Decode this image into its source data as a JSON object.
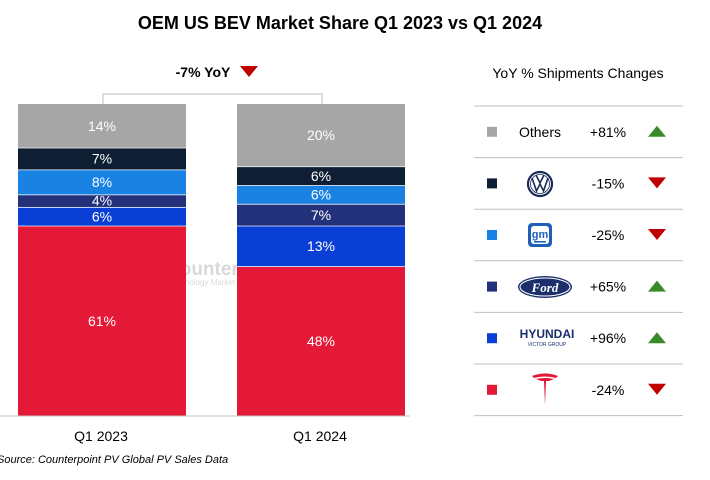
{
  "chart_data": {
    "type": "bar",
    "stacked": true,
    "title": "OEM US BEV Market Share Q1 2023 vs Q1 2024",
    "categories": [
      "Q1 2023",
      "Q1 2024"
    ],
    "series": [
      {
        "name": "Tesla",
        "color": "#e41937",
        "values": [
          61,
          48
        ],
        "labels": [
          "61%",
          "48%"
        ]
      },
      {
        "name": "Hyundai",
        "color": "#0a3fd6",
        "values": [
          6,
          13
        ],
        "labels": [
          "6%",
          "13%"
        ]
      },
      {
        "name": "Ford",
        "color": "#23307a",
        "values": [
          4,
          7
        ],
        "labels": [
          "4%",
          "7%"
        ]
      },
      {
        "name": "GM",
        "color": "#1a82e2",
        "values": [
          8,
          6
        ],
        "labels": [
          "8%",
          "6%"
        ]
      },
      {
        "name": "Volkswagen",
        "color": "#0e1f33",
        "values": [
          7,
          6
        ],
        "labels": [
          "7%",
          "6%"
        ]
      },
      {
        "name": "Others",
        "color": "#a6a6a6",
        "values": [
          14,
          20
        ],
        "labels": [
          "14%",
          "20%"
        ]
      }
    ],
    "ylim": [
      0,
      100
    ],
    "total_change": {
      "text": "-7% YoY",
      "direction": "down",
      "color": "#c00000"
    },
    "legend": {
      "title": "YoY % Shipments Changes",
      "placement": "right",
      "items": [
        {
          "series": "Others",
          "label": "Others",
          "logo": "text",
          "change": "+81%",
          "direction": "up"
        },
        {
          "series": "Volkswagen",
          "label": "",
          "logo": "vw-logo",
          "change": "-15%",
          "direction": "down"
        },
        {
          "series": "GM",
          "label": "",
          "logo": "gm-logo",
          "change": "-25%",
          "direction": "down"
        },
        {
          "series": "Ford",
          "label": "",
          "logo": "ford-logo",
          "change": "+65%",
          "direction": "up"
        },
        {
          "series": "Hyundai",
          "label": "",
          "logo": "hyundai-logo",
          "change": "+96%",
          "direction": "up"
        },
        {
          "series": "Tesla",
          "label": "",
          "logo": "tesla-logo",
          "change": "-24%",
          "direction": "down"
        }
      ]
    },
    "up_color": "#3a8a2a",
    "down_color": "#c00000"
  },
  "source": "Source: Counterpoint PV Global PV Sales Data",
  "watermark": {
    "name": "Counterpoint",
    "tagline": "Technology Market Research"
  },
  "logos": {
    "gm": "gm",
    "ford": "Ford",
    "hyundai": "HYUNDAI",
    "hyundai_sub": "VICTOR GROUP"
  }
}
